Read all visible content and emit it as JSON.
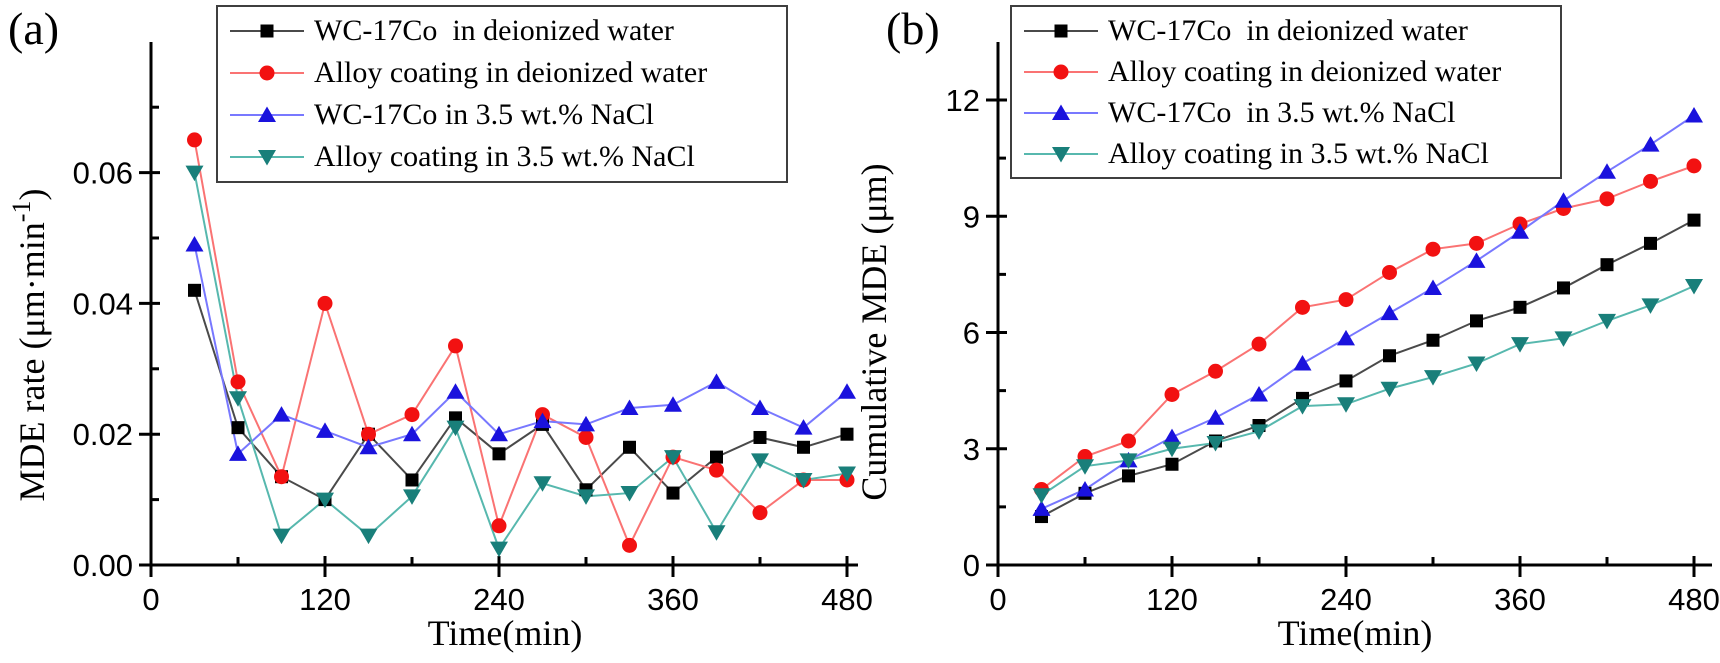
{
  "figure": {
    "background": "#ffffff",
    "axis_color": "#000000",
    "legend_border_color": "#3f3f3f"
  },
  "chart_data": [
    {
      "panel_label": "(a)",
      "type": "line",
      "title": "",
      "xlabel": "Time(min)",
      "ylabel": "MDE rate (μm·min⁻¹)",
      "ylabel_rich": {
        "pre": "MDE rate (μm·min",
        "sup": "-1",
        "post": ")"
      },
      "x": [
        30,
        60,
        90,
        120,
        150,
        180,
        210,
        240,
        270,
        300,
        330,
        360,
        390,
        420,
        450,
        480
      ],
      "xlim": [
        0,
        510
      ],
      "ylim": [
        0,
        0.076
      ],
      "x_ticks": [
        0,
        120,
        240,
        360,
        480
      ],
      "x_tick_labels": [
        "0",
        "120",
        "240",
        "360",
        "480"
      ],
      "x_minor_ticks": [
        60,
        180,
        300,
        420
      ],
      "y_ticks": [
        0,
        0.02,
        0.04,
        0.06
      ],
      "y_tick_labels": [
        "0.00",
        "0.02",
        "0.04",
        "0.06"
      ],
      "y_minor_ticks": [
        0.01,
        0.03,
        0.05,
        0.07
      ],
      "grid": false,
      "legend_position": "top",
      "series": [
        {
          "name": "WC-17Co  in deionized water",
          "marker": "square",
          "marker_color": "#000000",
          "line_color": "#4a4a4a",
          "values": [
            0.042,
            0.021,
            0.0135,
            0.01,
            0.02,
            0.013,
            0.0225,
            0.017,
            0.0215,
            0.0115,
            0.018,
            0.011,
            0.0165,
            0.0195,
            0.018,
            0.02
          ]
        },
        {
          "name": "Alloy coating in deionized water",
          "marker": "circle",
          "marker_color": "#f21111",
          "line_color": "#fa7373",
          "values": [
            0.065,
            0.028,
            0.0135,
            0.04,
            0.02,
            0.023,
            0.0335,
            0.006,
            0.023,
            0.0195,
            0.003,
            0.0165,
            0.0145,
            0.008,
            0.013,
            0.013
          ]
        },
        {
          "name": "WC-17Co in 3.5 wt.% NaCl",
          "marker": "triangle-up",
          "marker_color": "#1a12dd",
          "line_color": "#7878ff",
          "values": [
            0.049,
            0.017,
            0.023,
            0.0205,
            0.018,
            0.02,
            0.0265,
            0.02,
            0.022,
            0.0215,
            0.024,
            0.0245,
            0.028,
            0.024,
            0.021,
            0.0265
          ]
        },
        {
          "name": "Alloy coating in 3.5 wt.% NaCl",
          "marker": "triangle-down",
          "marker_color": "#197f7a",
          "line_color": "#57b8ae",
          "values": [
            0.06,
            0.0255,
            0.0045,
            0.01,
            0.0045,
            0.0105,
            0.021,
            0.0025,
            0.0125,
            0.0105,
            0.011,
            0.0165,
            0.005,
            0.016,
            0.013,
            0.014
          ]
        }
      ]
    },
    {
      "panel_label": "(b)",
      "type": "line",
      "title": "",
      "xlabel": "Time(min)",
      "ylabel": "Cumulative MDE (μm)",
      "x": [
        30,
        60,
        90,
        120,
        150,
        180,
        210,
        240,
        270,
        300,
        330,
        360,
        390,
        420,
        450,
        480
      ],
      "xlim": [
        0,
        510
      ],
      "ylim": [
        0,
        13.5
      ],
      "x_ticks": [
        0,
        120,
        240,
        360,
        480
      ],
      "x_tick_labels": [
        "0",
        "120",
        "240",
        "360",
        "480"
      ],
      "x_minor_ticks": [
        60,
        180,
        300,
        420
      ],
      "y_ticks": [
        0,
        3,
        6,
        9,
        12
      ],
      "y_tick_labels": [
        "0",
        "3",
        "6",
        "9",
        "12"
      ],
      "y_minor_ticks": [
        1.5,
        4.5,
        7.5,
        10.5
      ],
      "grid": false,
      "legend_position": "top",
      "series": [
        {
          "name": "WC-17Co  in deionized water",
          "marker": "square",
          "marker_color": "#000000",
          "line_color": "#4a4a4a",
          "values": [
            1.25,
            1.85,
            2.3,
            2.6,
            3.2,
            3.6,
            4.3,
            4.75,
            5.4,
            5.8,
            6.3,
            6.65,
            7.15,
            7.75,
            8.3,
            8.9
          ]
        },
        {
          "name": "Alloy coating in deionized water",
          "marker": "circle",
          "marker_color": "#f21111",
          "line_color": "#fa7373",
          "values": [
            1.95,
            2.8,
            3.2,
            4.4,
            5.0,
            5.7,
            6.65,
            6.85,
            7.55,
            8.15,
            8.3,
            8.8,
            9.2,
            9.45,
            9.9,
            10.3
          ]
        },
        {
          "name": "WC-17Co  in 3.5 wt.% NaCl",
          "marker": "triangle-up",
          "marker_color": "#1a12dd",
          "line_color": "#7878ff",
          "values": [
            1.45,
            1.95,
            2.7,
            3.3,
            3.8,
            4.4,
            5.2,
            5.85,
            6.5,
            7.15,
            7.85,
            8.6,
            9.4,
            10.15,
            10.85,
            11.6
          ]
        },
        {
          "name": "Alloy coating in 3.5 wt.% NaCl",
          "marker": "triangle-down",
          "marker_color": "#197f7a",
          "line_color": "#57b8ae",
          "values": [
            1.8,
            2.55,
            2.7,
            3.0,
            3.15,
            3.45,
            4.1,
            4.15,
            4.55,
            4.85,
            5.2,
            5.7,
            5.85,
            6.3,
            6.7,
            7.2
          ]
        }
      ]
    }
  ]
}
